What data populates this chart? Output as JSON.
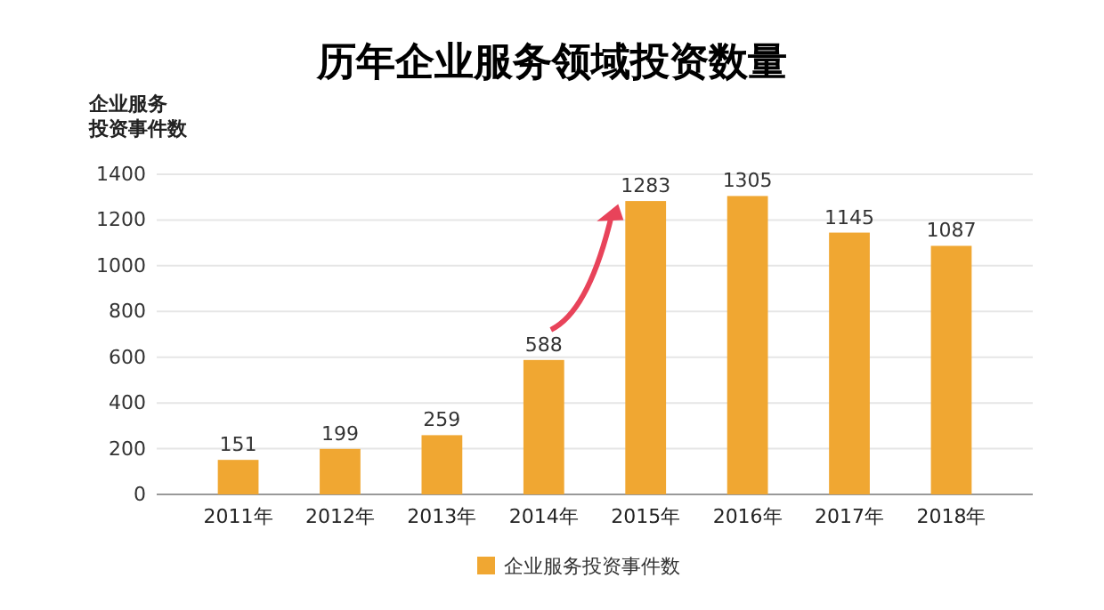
{
  "chart_data": {
    "type": "bar",
    "title": "历年企业服务领域投资数量",
    "ylabel": "企业服务投资事件数",
    "categories": [
      "2011年",
      "2012年",
      "2013年",
      "2014年",
      "2015年",
      "2016年",
      "2017年",
      "2018年"
    ],
    "series": [
      {
        "name": "企业服务投资事件数",
        "color": "#f0a732",
        "values": [
          151,
          199,
          259,
          588,
          1283,
          1305,
          1145,
          1087
        ]
      }
    ],
    "ylim": [
      0,
      1400
    ],
    "yticks": [
      0,
      200,
      400,
      600,
      800,
      1000,
      1200,
      1400
    ],
    "grid": "y",
    "data_labels": true,
    "legend": "bottom"
  }
}
